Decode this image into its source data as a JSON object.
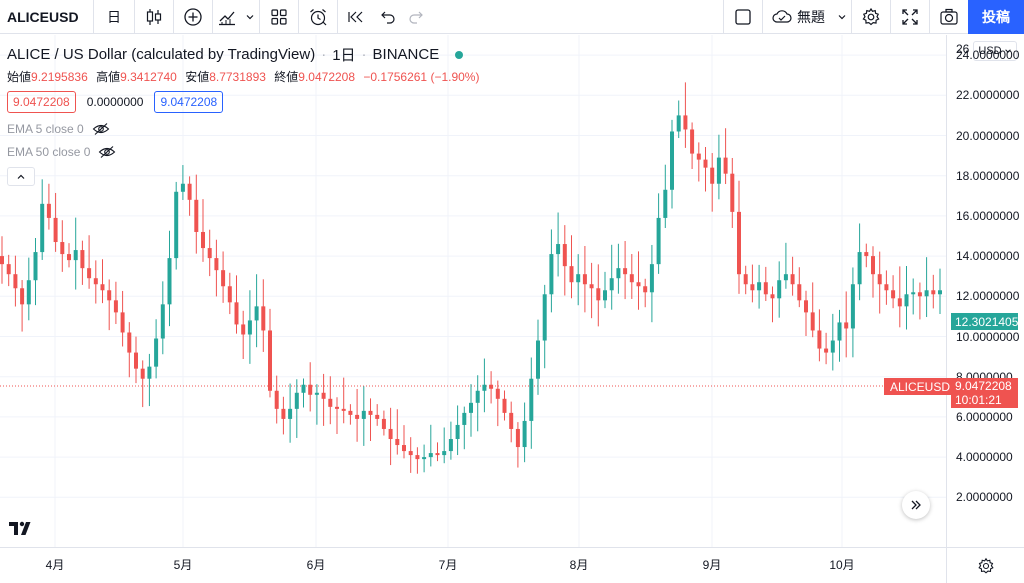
{
  "toolbar": {
    "symbol": "ALICEUSD",
    "interval": "日",
    "layout_name": "無題",
    "publish_label": "投稿"
  },
  "legend": {
    "title": "ALICE / US Dollar (calculated by TradingView)",
    "interval": "1日",
    "exchange": "BINANCE",
    "open_label": "始値",
    "open": "9.2195836",
    "high_label": "高値",
    "high": "9.3412740",
    "low_label": "安値",
    "low": "8.7731893",
    "close_label": "終値",
    "close": "9.0472208",
    "change": "−0.1756261 (−1.90%)",
    "value_box_1": "9.0472208",
    "value_mid": "0.0000000",
    "value_box_2": "9.0472208",
    "ema5": "EMA 5 close 0",
    "ema50": "EMA 50 close 0"
  },
  "price_axis": {
    "currency": "USD",
    "top_label": "26",
    "ticks": [
      "24.0000000",
      "22.0000000",
      "20.0000000",
      "18.0000000",
      "16.0000000",
      "14.0000000",
      "12.0000000",
      "10.0000000",
      "8.0000000",
      "6.0000000",
      "4.0000000",
      "2.0000000"
    ],
    "last_price": "12.3021405",
    "symbol_tag": "ALICEUSD",
    "current_price": "9.0472208",
    "countdown": "10:01:21"
  },
  "time_axis": {
    "ticks": [
      "4月",
      "5月",
      "6月",
      "7月",
      "8月",
      "9月",
      "10月"
    ]
  },
  "colors": {
    "up": "#26a69a",
    "down": "#ef5350",
    "accent": "#2962ff"
  },
  "chart_data": {
    "type": "candlestick",
    "x_labels": [
      "4月",
      "5月",
      "6月",
      "7月",
      "8月",
      "9月",
      "10月"
    ],
    "ylim": [
      1,
      26
    ],
    "grid": true,
    "close_series": [
      13.6,
      13.1,
      12.4,
      11.6,
      12.8,
      14.2,
      16.6,
      15.9,
      14.7,
      14.1,
      13.8,
      14.3,
      13.4,
      12.9,
      12.6,
      12.3,
      11.8,
      11.2,
      10.2,
      9.2,
      8.4,
      7.9,
      8.5,
      9.9,
      11.6,
      13.9,
      17.2,
      17.6,
      16.8,
      15.2,
      14.4,
      13.9,
      13.3,
      12.5,
      11.7,
      10.6,
      10.1,
      10.8,
      11.5,
      10.3,
      7.3,
      6.4,
      5.9,
      6.4,
      7.2,
      7.6,
      7.1,
      7.2,
      6.9,
      6.5,
      6.4,
      6.3,
      6.1,
      5.9,
      6.3,
      6.1,
      5.9,
      5.4,
      4.9,
      4.6,
      4.3,
      4.1,
      3.9,
      4.0,
      4.2,
      4.1,
      4.3,
      4.9,
      5.6,
      6.2,
      6.7,
      7.3,
      7.6,
      7.4,
      6.9,
      6.2,
      5.4,
      4.5,
      5.8,
      7.9,
      9.8,
      12.1,
      14.1,
      14.6,
      13.5,
      12.7,
      13.1,
      12.6,
      12.4,
      11.8,
      12.3,
      12.9,
      13.4,
      13.1,
      12.7,
      12.5,
      12.2,
      13.6,
      15.9,
      17.3,
      20.2,
      21.0,
      20.3,
      19.1,
      18.8,
      18.4,
      17.6,
      18.9,
      18.1,
      16.2,
      13.1,
      12.6,
      12.3,
      12.7,
      12.1,
      11.9,
      12.8,
      13.1,
      12.6,
      11.8,
      11.2,
      10.3,
      9.4,
      9.2,
      9.8,
      10.7,
      10.4,
      12.6,
      14.2,
      14.0,
      13.1,
      12.6,
      12.3,
      11.9,
      11.5,
      12.1,
      12.2,
      12.0,
      12.3,
      12.1,
      12.3
    ]
  }
}
